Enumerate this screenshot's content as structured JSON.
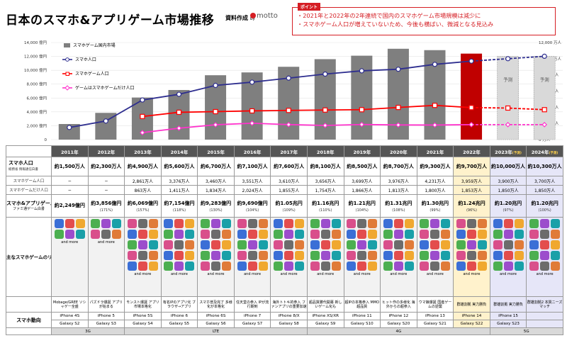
{
  "title": "日本のスマホ&アプリゲーム市場推移",
  "source": {
    "label": "資料作成",
    "by": "by",
    "logo": "motto"
  },
  "point": {
    "tag": "ポイント",
    "lines": [
      "・2021年と2022年の2年連続で国内のスマホゲーム市場規模は減少に",
      "・スマホゲーム人口が増えていないため、今後も横ばい、微減となる見込み"
    ]
  },
  "colors": {
    "bar": "#7f7f7f",
    "bar_highlight": "#c00000",
    "bar_forecast": "#d9d9d9",
    "line_users": "#2e2e8f",
    "line_gamers": "#ff0000",
    "line_gameonly": "#ff33cc",
    "accent": "#d51e24"
  },
  "chart_data": {
    "type": "bar+line",
    "categories": [
      "2011年",
      "2012年",
      "2013年",
      "2014年",
      "2015年",
      "2016年",
      "2017年",
      "2018年",
      "2019年",
      "2020年",
      "2021年",
      "2022年",
      "2023年",
      "2024年"
    ],
    "left_axis": {
      "ticks": [
        "0",
        "2,000 億円",
        "4,000 億円",
        "6,000 億円",
        "8,000 億円",
        "10,000 億円",
        "12,000 億円",
        "14,000 億円"
      ],
      "range": [
        0,
        14000
      ]
    },
    "right_axis": {
      "ticks": [
        "0 万人",
        "2,000 万人",
        "4,000 万人",
        "6,000 万人",
        "8,000 万人",
        "10,000 万人",
        "12,000 万人"
      ],
      "range": [
        0,
        12000
      ]
    },
    "forecast_label": "予測",
    "bars": {
      "name": "スマホゲーム国内市場",
      "values": [
        2249,
        3856,
        6069,
        7154,
        9283,
        9690,
        10500,
        11600,
        12100,
        13100,
        12900,
        12400,
        12000,
        12000
      ]
    },
    "series": [
      {
        "name": "スマホ人口",
        "values": [
          1500,
          2300,
          4900,
          5600,
          6700,
          7100,
          7600,
          8100,
          8500,
          8700,
          9300,
          9700,
          10000,
          10300
        ],
        "start": 0
      },
      {
        "name": "スマホゲーム人口",
        "values": [
          null,
          null,
          2861,
          3376,
          3460,
          3551,
          3610,
          3656,
          3699,
          3976,
          4231,
          3959,
          3900,
          3700
        ],
        "start": 2
      },
      {
        "name": "ゲームはスマホゲームだけ人口",
        "values": [
          null,
          null,
          863,
          1411,
          1834,
          2024,
          1855,
          1754,
          1866,
          1813,
          1800,
          1853,
          1850,
          1850
        ],
        "start": 2
      }
    ]
  },
  "table": {
    "pop_label": "スマホ人口",
    "pop_sub": "総務省 情報通信白書",
    "gamer_label": "スマホゲーム人口",
    "only_label": "スマホゲームだけ人口",
    "market_label": "スマホ&アプリゲーム国内市場",
    "market_sub": "ファミ通ゲーム白書",
    "release_label": "主なスマホゲームのリリース(一例)",
    "device_label": "スマホ動向",
    "years": [
      "2011年",
      "2012年",
      "2013年",
      "2014年",
      "2015年",
      "2016年",
      "2017年",
      "2018年",
      "2019年",
      "2020年",
      "2021年",
      "2022年",
      "2023年",
      "2024年"
    ],
    "forecast_marks": [
      "",
      "",
      "",
      "",
      "",
      "",
      "",
      "",
      "",
      "",
      "",
      "",
      "(予測)",
      "(予測)"
    ],
    "pop": [
      "約1,500万人",
      "約2,300万人",
      "約4,900万人",
      "約5,600万人",
      "約6,700万人",
      "約7,100万人",
      "約7,600万人",
      "約8,100万人",
      "約8,500万人",
      "約8,700万人",
      "約9,300万人",
      "約9,700万人",
      "約10,000万人",
      "約10,300万人"
    ],
    "gamers": [
      "−",
      "−",
      "2,861万人",
      "3,376万人",
      "3,460万人",
      "3,551万人",
      "3,610万人",
      "3,656万人",
      "3,699万人",
      "3,976万人",
      "4,231万人",
      "3,959万人",
      "3,900万人",
      "3,700万人"
    ],
    "only": [
      "−",
      "−",
      "863万人",
      "1,411万人",
      "1,834万人",
      "2,024万人",
      "1,855万人",
      "1,754万人",
      "1,866万人",
      "1,813万人",
      "1,800万人",
      "1,853万人",
      "1,850万人",
      "1,850万人"
    ],
    "market": [
      "約2,249億円",
      "約3,856億円",
      "約6,069億円",
      "約7,154億円",
      "約9,283億円",
      "約9,690億円",
      "約1.05兆円",
      "約1.16兆円",
      "約1.21兆円",
      "約1.31兆円",
      "約1.30兆円",
      "約1.24兆円",
      "約1.20兆円",
      "約1.20兆円"
    ],
    "growth": [
      "",
      "(171%)",
      "(157%)",
      "(118%)",
      "(130%)",
      "(104%)",
      "(109%)",
      "(110%)",
      "(104%)",
      "(108%)",
      "(99%)",
      "(96%)",
      "(97%)",
      "(100%)"
    ],
    "more": "and more",
    "desc": [
      "Mobage/GREE ソシャゲー全盛",
      "パズドラ爆誕 アプリが始まる",
      "モンスト爆誕 アプリ市場本格化",
      "有名IPのアプリ化 ブラウザ→アプリ",
      "スマホ普及完了 多様化が本格化",
      "任天堂の参入 IPが流行期到",
      "海外トトキ的参入 ファンアプリの重要加速",
      "超品質勝代開幕 新しいゲーム化も",
      "超IPの本格参入 MMO超品質",
      "ヒット作の多様化 海外からの超参入",
      "ウマ娘爆誕 国産ゲームの逆襲",
      "群雄割拠 実力勝負",
      "群雄割拠 実力勝負",
      "群雄割拠2 本質ニーズマッチ"
    ],
    "iphone": [
      "iPhone 4S",
      "iPhone 5",
      "iPhone 5S",
      "iPhone 6",
      "iPhone 6S",
      "iPhone 7",
      "iPhone 8/X",
      "iPhone XS/XR",
      "iPhone 11",
      "iPhone 12",
      "iPhone 13",
      "iPhone 14",
      "iPhone 15",
      ""
    ],
    "galaxy": [
      "Galaxy S2",
      "Galaxy S3",
      "Galaxy S4",
      "Galaxy S5",
      "Galaxy S6",
      "Galaxy S7",
      "Galaxy S8",
      "Galaxy S9",
      "Galaxy S10",
      "Galaxy S20",
      "Galaxy S21",
      "Galaxy S22",
      "Galaxy S23",
      ""
    ],
    "generations": [
      {
        "label": "3G",
        "span": 2
      },
      {
        "label": "LTE",
        "span": 5
      },
      {
        "label": "4G",
        "span": 5
      },
      {
        "label": "5G",
        "span": 2
      }
    ]
  }
}
